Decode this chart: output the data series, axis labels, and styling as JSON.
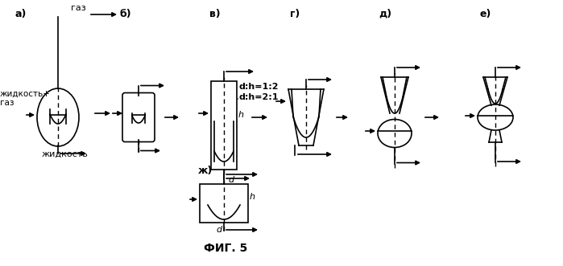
{
  "bg_color": "#ffffff",
  "line_color": "#000000",
  "fig_width": 6.99,
  "fig_height": 3.31,
  "dpi": 100,
  "title": "ФИГ. 5",
  "labels": {
    "a": "а)",
    "b": "б)",
    "v": "в)",
    "g": "г)",
    "d": "д)",
    "e": "е)",
    "zh": "ж)",
    "gas": "газ",
    "liquid_gas": "жидкость+\nгаз",
    "liquid": "жидкость",
    "dh_1": "d:h=1:2",
    "dh_2": "d:h=2:1",
    "d_label": "d",
    "h_label": "h"
  }
}
